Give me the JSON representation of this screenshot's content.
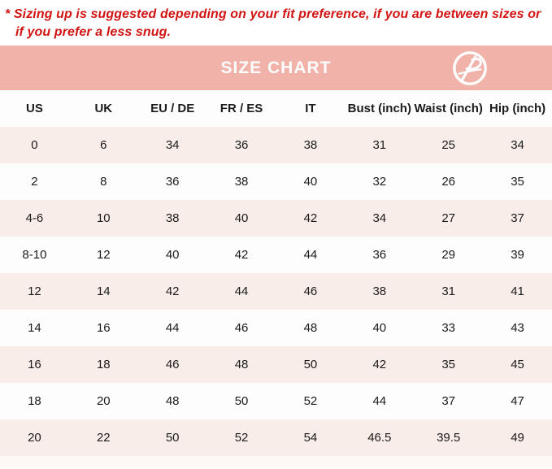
{
  "note": {
    "text": "* Sizing up is suggested depending on your fit preference, if you are between sizes or if you prefer a less snug."
  },
  "header": {
    "title": "SIZE CHART",
    "logo_icon": "brand-logo"
  },
  "colors": {
    "note_red": "#d21414",
    "header_pink": "#f0b2a9",
    "stripe_pink": "#f9ede9",
    "row_white": "#fefdfd",
    "text_dark": "#1b1b1b",
    "title_white": "#fdfdfd"
  },
  "chart_data": {
    "type": "table",
    "title": "SIZE CHART",
    "columns": [
      "US",
      "UK",
      "EU / DE",
      "FR / ES",
      "IT",
      "Bust (inch)",
      "Waist (inch)",
      "Hip (inch)"
    ],
    "rows": [
      [
        "0",
        "6",
        "34",
        "36",
        "38",
        "31",
        "25",
        "34"
      ],
      [
        "2",
        "8",
        "36",
        "38",
        "40",
        "32",
        "26",
        "35"
      ],
      [
        "4-6",
        "10",
        "38",
        "40",
        "42",
        "34",
        "27",
        "37"
      ],
      [
        "8-10",
        "12",
        "40",
        "42",
        "44",
        "36",
        "29",
        "39"
      ],
      [
        "12",
        "14",
        "42",
        "44",
        "46",
        "38",
        "31",
        "41"
      ],
      [
        "14",
        "16",
        "44",
        "46",
        "48",
        "40",
        "33",
        "43"
      ],
      [
        "16",
        "18",
        "46",
        "48",
        "50",
        "42",
        "35",
        "45"
      ],
      [
        "18",
        "20",
        "48",
        "50",
        "52",
        "44",
        "37",
        "47"
      ],
      [
        "20",
        "22",
        "50",
        "52",
        "54",
        "46.5",
        "39.5",
        "49"
      ]
    ]
  }
}
